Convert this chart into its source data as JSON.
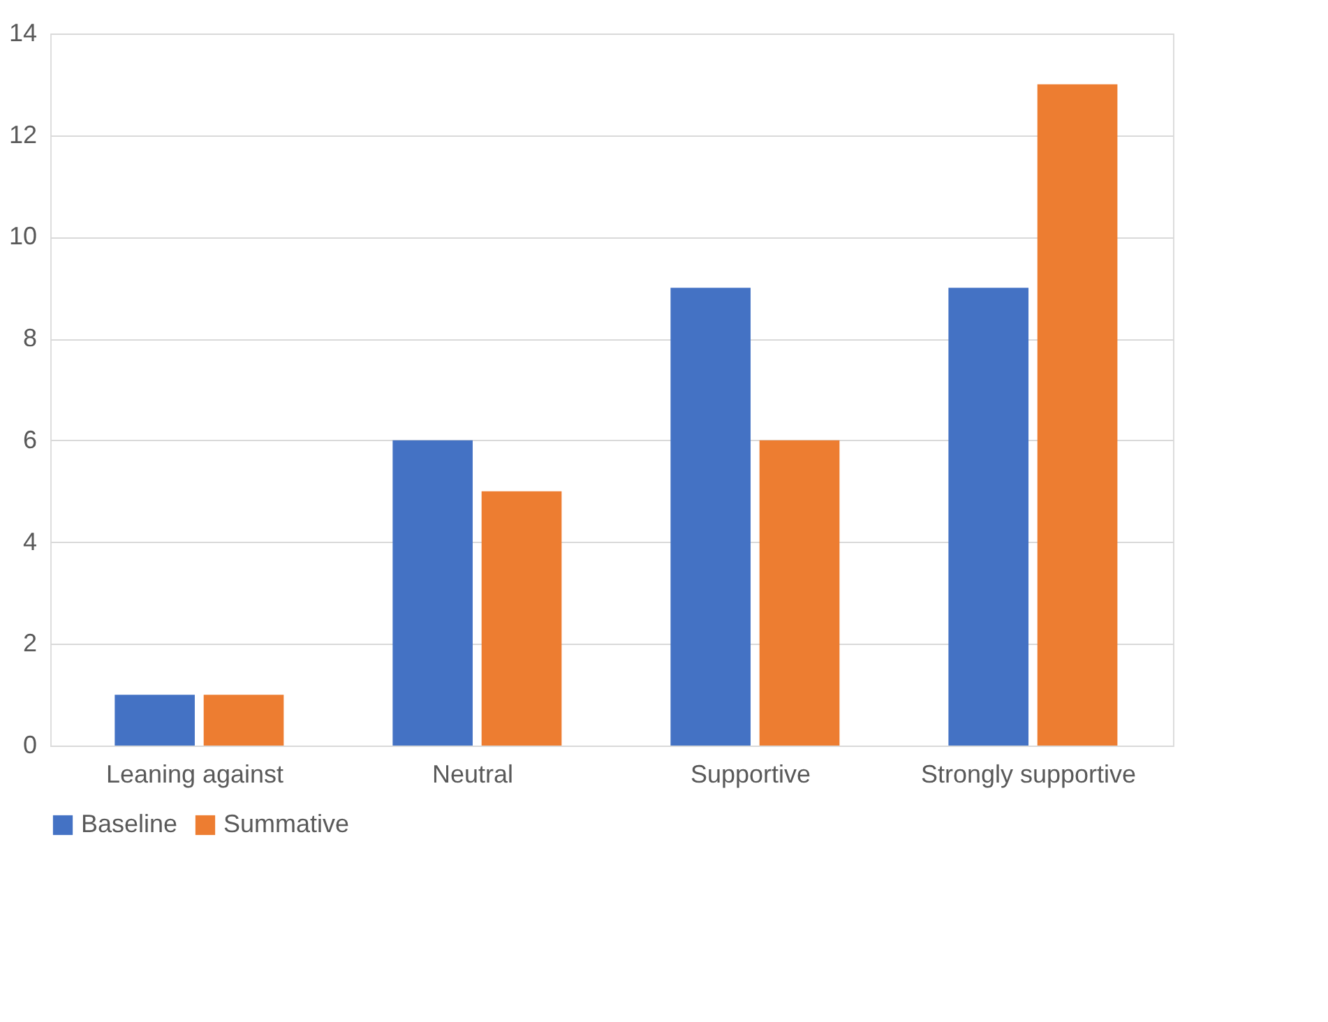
{
  "chart_data": {
    "type": "bar",
    "categories": [
      "Leaning against",
      "Neutral",
      "Supportive",
      "Strongly supportive"
    ],
    "series": [
      {
        "name": "Baseline",
        "color": "#4472c4",
        "values": [
          1,
          6,
          9,
          9
        ]
      },
      {
        "name": "Summative",
        "color": "#ed7d31",
        "values": [
          1,
          5,
          6,
          13
        ]
      }
    ],
    "ylim": [
      0,
      14
    ],
    "yticks": [
      0,
      2,
      4,
      6,
      8,
      10,
      12,
      14
    ],
    "grid": "y",
    "legend": "bottom"
  }
}
